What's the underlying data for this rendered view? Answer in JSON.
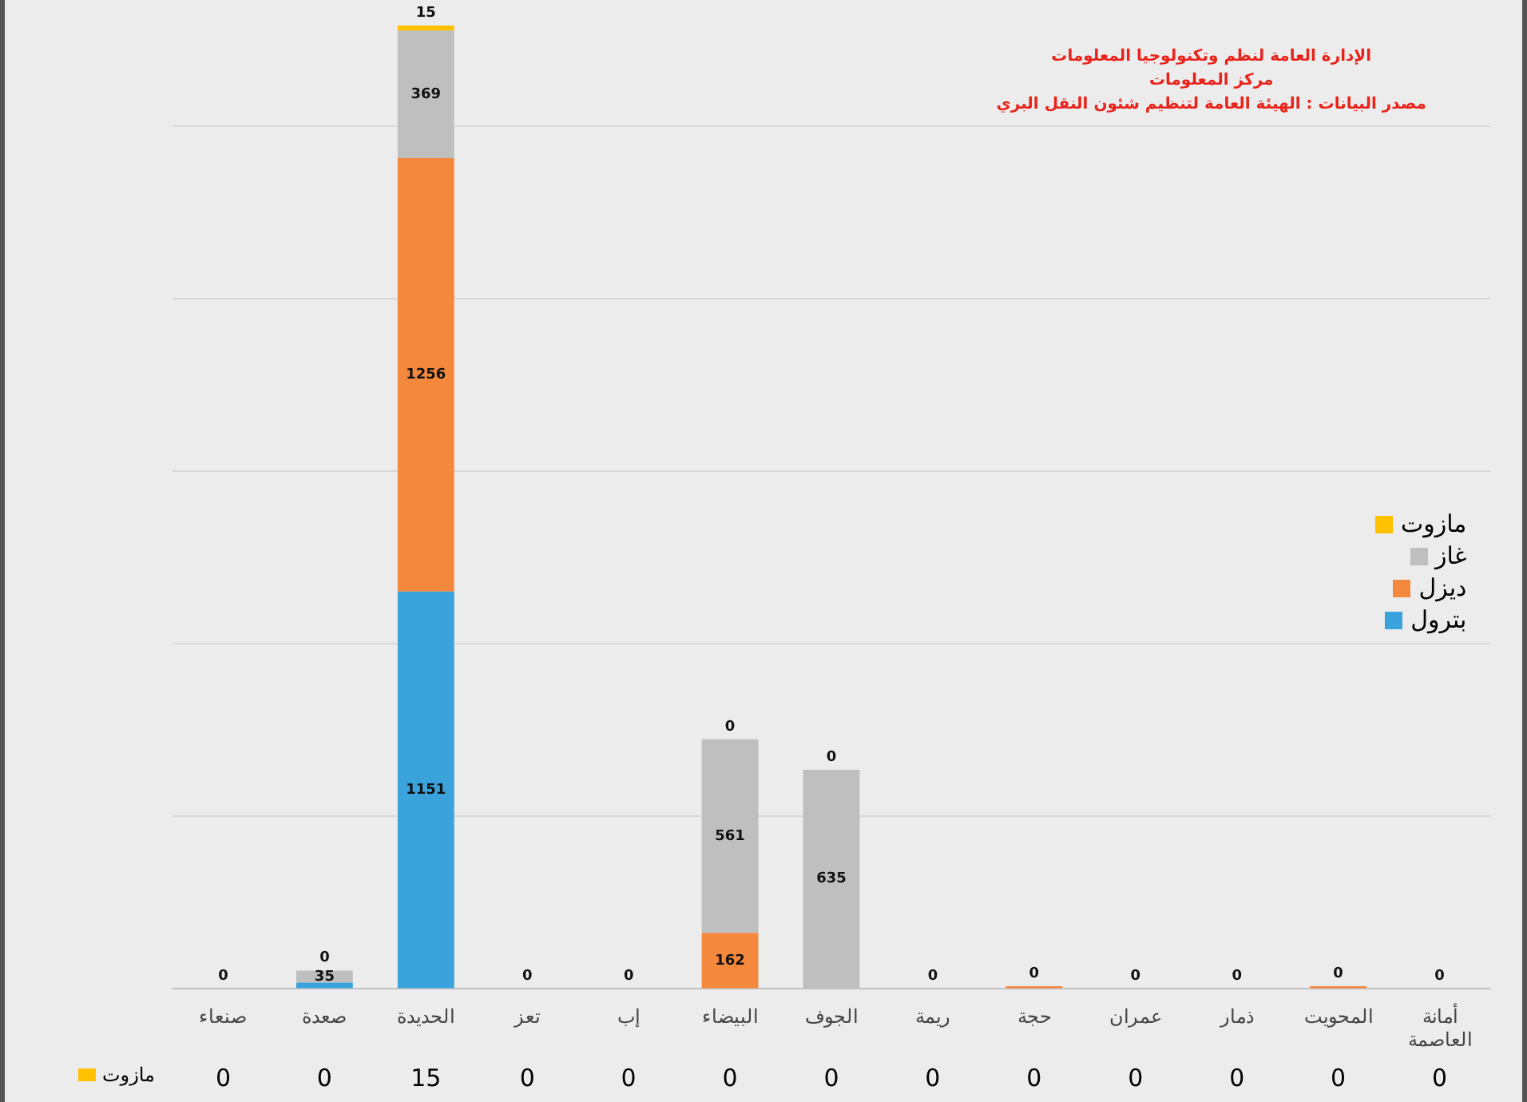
{
  "chart_data": {
    "type": "bar",
    "stacked": true,
    "categories": [
      "صنعاء",
      "صعدة",
      "الحديدة",
      "تعز",
      "إب",
      "البيضاء",
      "الجوف",
      "ريمة",
      "حجة",
      "عمران",
      "ذمار",
      "المحويت",
      "أمانة العاصمة"
    ],
    "series": [
      {
        "name": "بترول",
        "color": "#3ba3dc",
        "values": [
          0,
          18,
          1151,
          0,
          0,
          0,
          0,
          0,
          0,
          0,
          0,
          0,
          0
        ],
        "value_labels": [
          null,
          null,
          "1151",
          null,
          null,
          null,
          null,
          null,
          null,
          null,
          null,
          null,
          null
        ]
      },
      {
        "name": "ديزل",
        "color": "#f4883c",
        "values": [
          0,
          0,
          1256,
          0,
          0,
          162,
          0,
          0,
          8,
          0,
          0,
          8,
          0
        ],
        "value_labels": [
          null,
          null,
          "1256",
          null,
          null,
          "162",
          null,
          null,
          null,
          null,
          null,
          null,
          null
        ]
      },
      {
        "name": "غاز",
        "color": "#bfbfbf",
        "values": [
          0,
          35,
          369,
          0,
          0,
          561,
          635,
          0,
          0,
          0,
          0,
          0,
          0
        ],
        "value_labels": [
          null,
          "35",
          "369",
          null,
          null,
          "561",
          "635",
          null,
          null,
          null,
          null,
          null,
          null
        ]
      },
      {
        "name": "مازوت",
        "color": "#ffc000",
        "values": [
          0,
          0,
          15,
          0,
          0,
          0,
          0,
          0,
          0,
          0,
          0,
          0,
          0
        ],
        "value_labels": [
          "0",
          "0",
          "15",
          "0",
          "0",
          "0",
          "0",
          "0",
          "0",
          "0",
          "0",
          "0",
          "0"
        ]
      }
    ],
    "ylim": [
      0,
      2800
    ],
    "yticks": [
      {
        "value": 0,
        "label": null
      },
      {
        "value": 500,
        "label": null
      },
      {
        "value": 1000,
        "label": null
      },
      {
        "value": 1500,
        "label": null
      },
      {
        "value": 2000,
        "label": null
      },
      {
        "value": 2500,
        "label": null
      }
    ],
    "tick_labels": "x",
    "grid": "y",
    "legend": "right",
    "annotations": [
      "الإدارة العامة لنظم وتكنولوجيا المعلومات",
      "مركز المعلومات",
      "مصدر البيانات : الهيئة العامة لتنظيم شئون النقل البري"
    ]
  }
}
